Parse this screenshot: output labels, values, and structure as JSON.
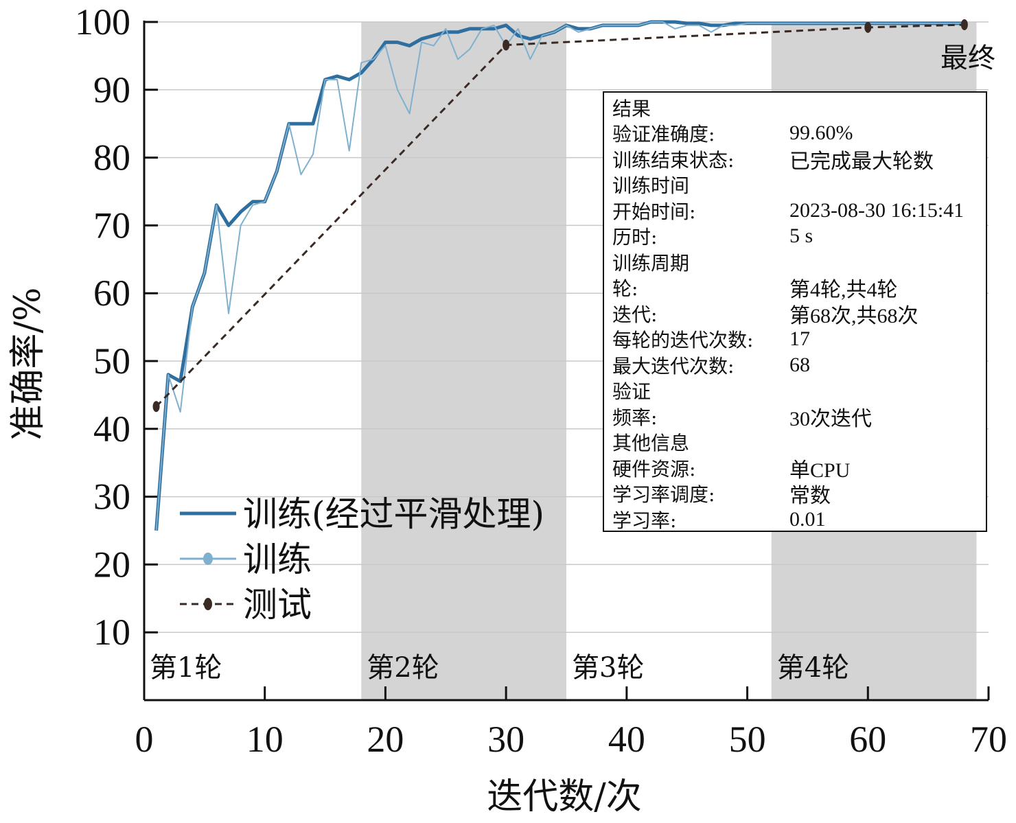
{
  "chart_data": {
    "type": "line",
    "xlabel": "迭代数/次",
    "ylabel": "准确率/%",
    "xlim": [
      0,
      70
    ],
    "ylim": [
      0,
      100
    ],
    "x_ticks": [
      0,
      10,
      20,
      30,
      40,
      50,
      60,
      70
    ],
    "y_ticks": [
      10,
      20,
      30,
      40,
      50,
      60,
      70,
      80,
      90,
      100
    ],
    "grid": true,
    "legend_position": "lower-left",
    "epoch_bands": [
      {
        "label": "第1轮",
        "x_start": 0,
        "x_end": 18,
        "shaded": false
      },
      {
        "label": "第2轮",
        "x_start": 18,
        "x_end": 35,
        "shaded": true
      },
      {
        "label": "第3轮",
        "x_start": 35,
        "x_end": 52,
        "shaded": false
      },
      {
        "label": "第4轮",
        "x_start": 52,
        "x_end": 69,
        "shaded": true
      }
    ],
    "final_label": "最终",
    "series": [
      {
        "name": "训练(经过平滑处理)",
        "color": "#2f6f9f",
        "style": "solid-thick",
        "points": [
          [
            1,
            25
          ],
          [
            2,
            48
          ],
          [
            3,
            47
          ],
          [
            4,
            58
          ],
          [
            5,
            63
          ],
          [
            6,
            73
          ],
          [
            7,
            70
          ],
          [
            8,
            72
          ],
          [
            9,
            73.5
          ],
          [
            10,
            73.5
          ],
          [
            11,
            78
          ],
          [
            12,
            85
          ],
          [
            13,
            85
          ],
          [
            14,
            85
          ],
          [
            15,
            91.5
          ],
          [
            16,
            92
          ],
          [
            17,
            91.5
          ],
          [
            18,
            92.5
          ],
          [
            19,
            94.5
          ],
          [
            20,
            97
          ],
          [
            21,
            97
          ],
          [
            22,
            96.5
          ],
          [
            23,
            97.5
          ],
          [
            24,
            98
          ],
          [
            25,
            98.5
          ],
          [
            26,
            98.5
          ],
          [
            27,
            99
          ],
          [
            28,
            99
          ],
          [
            29,
            99
          ],
          [
            30,
            99.5
          ],
          [
            31,
            98
          ],
          [
            32,
            97.5
          ],
          [
            33,
            98
          ],
          [
            34,
            98.5
          ],
          [
            35,
            99.5
          ],
          [
            36,
            99
          ],
          [
            37,
            99
          ],
          [
            38,
            99.5
          ],
          [
            39,
            99.5
          ],
          [
            40,
            99.5
          ],
          [
            41,
            99.5
          ],
          [
            42,
            100
          ],
          [
            43,
            100
          ],
          [
            44,
            100
          ],
          [
            45,
            99.8
          ],
          [
            46,
            99.8
          ],
          [
            47,
            99.5
          ],
          [
            48,
            99.5
          ],
          [
            49,
            99.8
          ],
          [
            50,
            99.8
          ],
          [
            51,
            99.8
          ],
          [
            52,
            99.8
          ],
          [
            53,
            99.8
          ],
          [
            54,
            99.8
          ],
          [
            55,
            99.8
          ],
          [
            56,
            99.8
          ],
          [
            57,
            99.8
          ],
          [
            58,
            99.8
          ],
          [
            59,
            99.8
          ],
          [
            60,
            99.8
          ],
          [
            61,
            99.8
          ],
          [
            62,
            99.8
          ],
          [
            63,
            99.8
          ],
          [
            64,
            99.8
          ],
          [
            65,
            99.8
          ],
          [
            66,
            99.8
          ],
          [
            67,
            99.8
          ],
          [
            68,
            99.8
          ]
        ]
      },
      {
        "name": "训练",
        "color": "#7fb0cf",
        "style": "solid-thin",
        "points": [
          [
            1,
            25
          ],
          [
            2,
            48
          ],
          [
            3,
            42.5
          ],
          [
            4,
            58
          ],
          [
            5,
            63
          ],
          [
            6,
            73
          ],
          [
            7,
            57
          ],
          [
            8,
            70
          ],
          [
            9,
            73
          ],
          [
            10,
            73.5
          ],
          [
            11,
            78
          ],
          [
            12,
            85
          ],
          [
            13,
            77.5
          ],
          [
            14,
            80.5
          ],
          [
            15,
            91.5
          ],
          [
            16,
            91.5
          ],
          [
            17,
            81
          ],
          [
            18,
            94
          ],
          [
            19,
            94.5
          ],
          [
            20,
            96.5
          ],
          [
            21,
            90
          ],
          [
            22,
            86.5
          ],
          [
            23,
            97
          ],
          [
            24,
            96.5
          ],
          [
            25,
            99
          ],
          [
            26,
            94.5
          ],
          [
            27,
            96
          ],
          [
            28,
            99
          ],
          [
            29,
            99.5
          ],
          [
            30,
            96.5
          ],
          [
            31,
            99
          ],
          [
            32,
            94.5
          ],
          [
            33,
            98
          ],
          [
            34,
            98.5
          ],
          [
            35,
            99.5
          ],
          [
            36,
            98.5
          ],
          [
            37,
            99
          ],
          [
            38,
            99.5
          ],
          [
            39,
            99.5
          ],
          [
            40,
            99.5
          ],
          [
            41,
            99.5
          ],
          [
            42,
            100
          ],
          [
            43,
            100
          ],
          [
            44,
            99
          ],
          [
            45,
            99.5
          ],
          [
            46,
            99.5
          ],
          [
            47,
            98.5
          ],
          [
            48,
            99.5
          ],
          [
            49,
            99.5
          ],
          [
            50,
            99.8
          ],
          [
            51,
            99.8
          ],
          [
            52,
            99.8
          ],
          [
            53,
            99.8
          ],
          [
            54,
            99.8
          ],
          [
            55,
            99.8
          ],
          [
            56,
            99.8
          ],
          [
            57,
            99.8
          ],
          [
            58,
            99.8
          ],
          [
            59,
            99.8
          ],
          [
            60,
            99.8
          ],
          [
            61,
            99.8
          ],
          [
            62,
            99.8
          ],
          [
            63,
            99.8
          ],
          [
            64,
            99.8
          ],
          [
            65,
            99.8
          ],
          [
            66,
            99.8
          ],
          [
            67,
            99.8
          ],
          [
            68,
            99.8
          ]
        ]
      },
      {
        "name": "测试",
        "color": "#3a2a24",
        "style": "dashed-markers",
        "points": [
          [
            1,
            43.3
          ],
          [
            30,
            96.6
          ],
          [
            60,
            99.2
          ],
          [
            68,
            99.6
          ]
        ]
      }
    ],
    "info_panel": {
      "rows": [
        {
          "key": "结果",
          "value": ""
        },
        {
          "key": "验证准确度:",
          "value": "99.60%"
        },
        {
          "key": "训练结束状态:",
          "value": "已完成最大轮数"
        },
        {
          "key": "训练时间",
          "value": ""
        },
        {
          "key": "开始时间:",
          "value": "2023-08-30 16:15:41"
        },
        {
          "key": "历时:",
          "value": "5 s"
        },
        {
          "key": "训练周期",
          "value": ""
        },
        {
          "key": "轮:",
          "value": "第4轮,共4轮"
        },
        {
          "key": "迭代:",
          "value": "第68次,共68次"
        },
        {
          "key": "每轮的迭代次数:",
          "value": "17"
        },
        {
          "key": "最大迭代次数:",
          "value": "68"
        },
        {
          "key": "验证",
          "value": ""
        },
        {
          "key": "频率:",
          "value": "30次迭代"
        },
        {
          "key": "其他信息",
          "value": ""
        },
        {
          "key": "硬件资源:",
          "value": "单CPU"
        },
        {
          "key": "学习率调度:",
          "value": "常数"
        },
        {
          "key": "学习率:",
          "value": "0.01"
        }
      ]
    }
  }
}
